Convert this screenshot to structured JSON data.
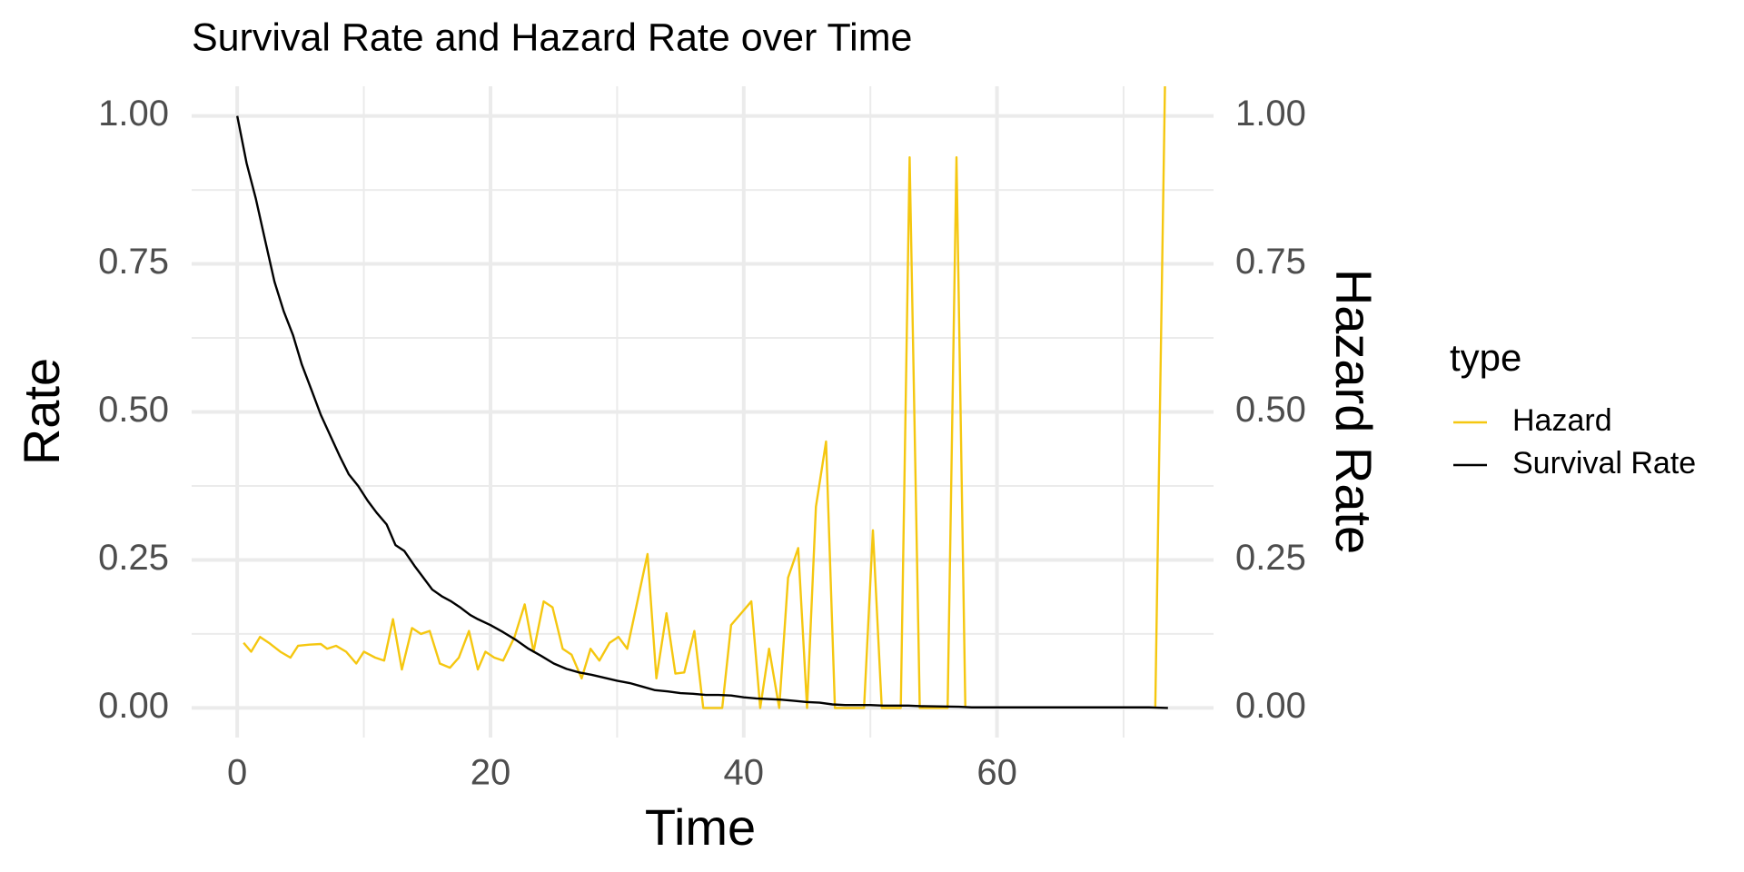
{
  "chart_data": {
    "type": "line",
    "title": "Survival Rate and Hazard Rate over Time",
    "x_label": "Time",
    "y_label": "Rate",
    "y2_label": "Hazard Rate",
    "legend_title": "type",
    "legend_position": "right",
    "grid": true,
    "xlim": [
      -3.6,
      77.1
    ],
    "ylim": [
      -0.05,
      1.05
    ],
    "y2lim": [
      -0.05,
      1.05
    ],
    "xticks": [
      0,
      20,
      40,
      60
    ],
    "xminor": [
      10,
      30,
      50,
      70
    ],
    "yticks": [
      {
        "value": 0,
        "label": "0.00"
      },
      {
        "value": 0.25,
        "label": "0.25"
      },
      {
        "value": 0.5,
        "label": "0.50"
      },
      {
        "value": 0.75,
        "label": "0.75"
      },
      {
        "value": 1,
        "label": "1.00"
      }
    ],
    "yminor": [
      0.125,
      0.375,
      0.625,
      0.875
    ],
    "y2ticks": [
      {
        "value": 0,
        "label": "0.00"
      },
      {
        "value": 0.25,
        "label": "0.25"
      },
      {
        "value": 0.5,
        "label": "0.50"
      },
      {
        "value": 0.75,
        "label": "0.75"
      },
      {
        "value": 1,
        "label": "1.00"
      }
    ],
    "series": [
      {
        "name": "Hazard",
        "color": "#F5C710",
        "axis": "y2",
        "x": [
          0.5,
          1.1,
          1.8,
          2.5,
          3.4,
          4.2,
          4.8,
          5.7,
          6.6,
          7.1,
          7.8,
          8.6,
          9.4,
          10,
          10.9,
          11.6,
          12.3,
          13,
          13.8,
          14.5,
          15.2,
          16,
          16.8,
          17.5,
          18.3,
          19,
          19.6,
          20.3,
          21,
          21.9,
          22.7,
          23.4,
          24.2,
          24.9,
          25.7,
          26.4,
          27.2,
          27.9,
          28.6,
          29.4,
          30.1,
          30.8,
          31.6,
          32.4,
          33.1,
          33.9,
          34.6,
          35.3,
          36.1,
          36.8,
          37.5,
          38.3,
          39,
          39.8,
          40.6,
          41.3,
          42,
          42.8,
          43.5,
          44.3,
          45,
          45.7,
          46.5,
          47.2,
          48,
          48.8,
          49.5,
          50.2,
          50.9,
          51.7,
          52.4,
          53.1,
          53.9,
          54.6,
          55.4,
          56.1,
          56.8,
          57.5,
          65,
          72.5,
          73.3
        ],
        "values": [
          0.11,
          0.095,
          0.12,
          0.11,
          0.095,
          0.085,
          0.105,
          0.107,
          0.108,
          0.1,
          0.105,
          0.095,
          0.075,
          0.095,
          0.085,
          0.08,
          0.15,
          0.065,
          0.135,
          0.125,
          0.13,
          0.075,
          0.068,
          0.085,
          0.13,
          0.065,
          0.095,
          0.085,
          0.08,
          0.12,
          0.175,
          0.095,
          0.18,
          0.17,
          0.1,
          0.09,
          0.05,
          0.1,
          0.08,
          0.11,
          0.12,
          0.1,
          0.18,
          0.26,
          0.05,
          0.16,
          0.058,
          0.06,
          0.13,
          0,
          0,
          0,
          0.14,
          0.16,
          0.18,
          0,
          0.1,
          0,
          0.22,
          0.27,
          0,
          0.34,
          0.45,
          0,
          0,
          0,
          0,
          0.3,
          0,
          0,
          0,
          0.93,
          0,
          0,
          0,
          0,
          0.93,
          0,
          null,
          0,
          1.1
        ]
      },
      {
        "name": "Survival Rate",
        "color": "#000000",
        "x": [
          0,
          0.74,
          1.47,
          2.2,
          2.94,
          3.67,
          4.4,
          5.1,
          5.9,
          6.6,
          7.35,
          8.1,
          8.8,
          9.55,
          10.3,
          11,
          11.8,
          12.5,
          13.2,
          14,
          14.7,
          15.4,
          16.2,
          16.9,
          17.6,
          18.4,
          19,
          20,
          21,
          22,
          23,
          24,
          25,
          26,
          27,
          28,
          29,
          30,
          31,
          32,
          33,
          34,
          35,
          36,
          37,
          38,
          39,
          40,
          41,
          42,
          43,
          44,
          45,
          46,
          47,
          48,
          50,
          51,
          53,
          54,
          57,
          58,
          65,
          72,
          73.5
        ],
        "values": [
          1,
          0.92,
          0.86,
          0.79,
          0.72,
          0.67,
          0.63,
          0.58,
          0.535,
          0.495,
          0.46,
          0.425,
          0.395,
          0.375,
          0.35,
          0.33,
          0.31,
          0.275,
          0.265,
          0.24,
          0.22,
          0.2,
          0.188,
          0.18,
          0.17,
          0.157,
          0.15,
          0.14,
          0.128,
          0.115,
          0.1,
          0.088,
          0.075,
          0.066,
          0.06,
          0.056,
          0.051,
          0.046,
          0.042,
          0.036,
          0.03,
          0.028,
          0.025,
          0.024,
          0.022,
          0.022,
          0.021,
          0.018,
          0.016,
          0.015,
          0.014,
          0.012,
          0.01,
          0.009,
          0.006,
          0.005,
          0.005,
          0.004,
          0.004,
          0.003,
          0.002,
          0.001,
          0.001,
          0.001,
          0
        ]
      }
    ]
  }
}
